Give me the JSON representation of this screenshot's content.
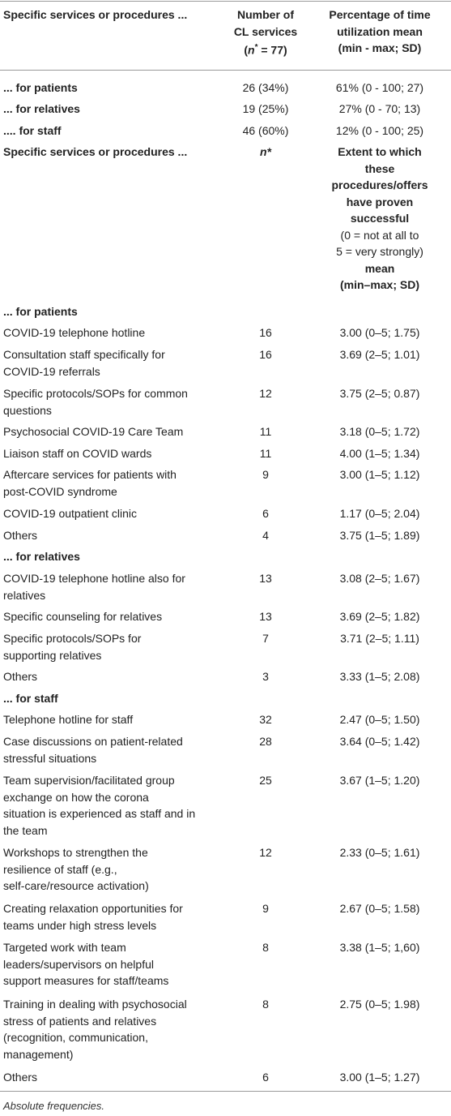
{
  "header": {
    "col1": "Specific services or procedures ...",
    "col2_line1": "Number of",
    "col2_line2": "CL services",
    "col2_n": "n",
    "col2_star": "*",
    "col2_eq": " = 77)",
    "col3_line1": "Percentage of time",
    "col3_line2": "utilization mean",
    "col3_line3": "(min - max; SD)"
  },
  "part1": [
    {
      "label": "... for patients",
      "n": "26 (34%)",
      "v": "61% (0 - 100; 27)"
    },
    {
      "label": "... for relatives",
      "n": "19 (25%)",
      "v": "27% (0 - 70; 13)"
    },
    {
      "label": ".... for staff",
      "n": "46 (60%)",
      "v": "12% (0 - 100; 25)"
    }
  ],
  "header2": {
    "col1": "Specific services or procedures ...",
    "col2": "n*",
    "col3_b1": "Extent to which",
    "col3_b2": "these",
    "col3_b3": "procedures/offers",
    "col3_b4": "have proven",
    "col3_b5": "successful",
    "col3_n1": "(0 = not at all to",
    "col3_n2": "5 = very strongly)",
    "col3_b6": "mean",
    "col3_b7": "(min–max; SD)"
  },
  "sections": {
    "patients": "... for patients",
    "relatives": "... for relatives",
    "staff": "... for staff"
  },
  "rows": [
    {
      "l1": "COVID-19 telephone hotline",
      "n": "16",
      "v": "3.00 (0–5; 1.75)"
    },
    {
      "l1": "Consultation staff specifically for",
      "l2": "COVID-19 referrals",
      "n": "16",
      "v": "3.69 (2–5; 1.01)"
    },
    {
      "l1": "Specific protocols/SOPs for common",
      "l2": "questions",
      "n": "12",
      "v": "3.75 (2–5; 0.87)"
    },
    {
      "l1": "Psychosocial COVID-19 Care Team",
      "n": "11",
      "v": "3.18 (0–5; 1.72)"
    },
    {
      "l1": "Liaison staff on COVID wards",
      "n": "11",
      "v": "4.00 (1–5; 1.34)"
    },
    {
      "l1": "Aftercare services for patients with",
      "l2": "post-COVID syndrome",
      "n": "9",
      "v": "3.00 (1–5; 1.12)"
    },
    {
      "l1": "COVID-19 outpatient clinic",
      "n": "6",
      "v": "1.17 (0–5; 2.04)"
    },
    {
      "l1": "Others",
      "n": "4",
      "v": "3.75 (1–5; 1.89)"
    },
    {
      "l1": "COVID-19 telephone hotline also for",
      "l2": "relatives",
      "n": "13",
      "v": "3.08 (2–5; 1.67)"
    },
    {
      "l1": "Specific counseling for relatives",
      "n": "13",
      "v": "3.69 (2–5; 1.82)"
    },
    {
      "l1": "Specific protocols/SOPs for",
      "l2": "supporting relatives",
      "n": "7",
      "v": "3.71 (2–5; 1.11)"
    },
    {
      "l1": "Others",
      "n": "3",
      "v": "3.33 (1–5; 2.08)"
    },
    {
      "l1": "Telephone hotline for staff",
      "n": "32",
      "v": "2.47 (0–5; 1.50)"
    },
    {
      "l1": "Case discussions on patient-related",
      "l2": "stressful situations",
      "n": "28",
      "v": "3.64 (0–5; 1.42)"
    },
    {
      "l1": "Team supervision/facilitated group",
      "l2": "exchange on how the corona",
      "l3": "situation is experienced as staff and in",
      "l4": "the team",
      "n": "25",
      "v": "3.67 (1–5; 1.20)"
    },
    {
      "l1": "Workshops to strengthen the",
      "l2": "resilience of staff (e.g.,",
      "l3": "self-care/resource activation)",
      "n": "12",
      "v": "2.33 (0–5; 1.61)"
    },
    {
      "l1": "Creating relaxation opportunities for",
      "l2": "teams under high stress levels",
      "n": "9",
      "v": "2.67 (0–5; 1.58)"
    },
    {
      "l1": "Targeted work with team",
      "l2": "leaders/supervisors on helpful",
      "l3": "support measures for staff/teams",
      "n": "8",
      "v": "3.38 (1–5; 1,60)"
    },
    {
      "l1": "Training in dealing with psychosocial",
      "l2": "stress of patients and relatives",
      "l3": "(recognition, communication,",
      "l4": "management)",
      "n": "8",
      "v": "2.75 (0–5; 1.98)"
    },
    {
      "l1": "Others",
      "n": "6",
      "v": "3.00 (1–5; 1.27)"
    }
  ],
  "footnote": "Absolute frequencies."
}
